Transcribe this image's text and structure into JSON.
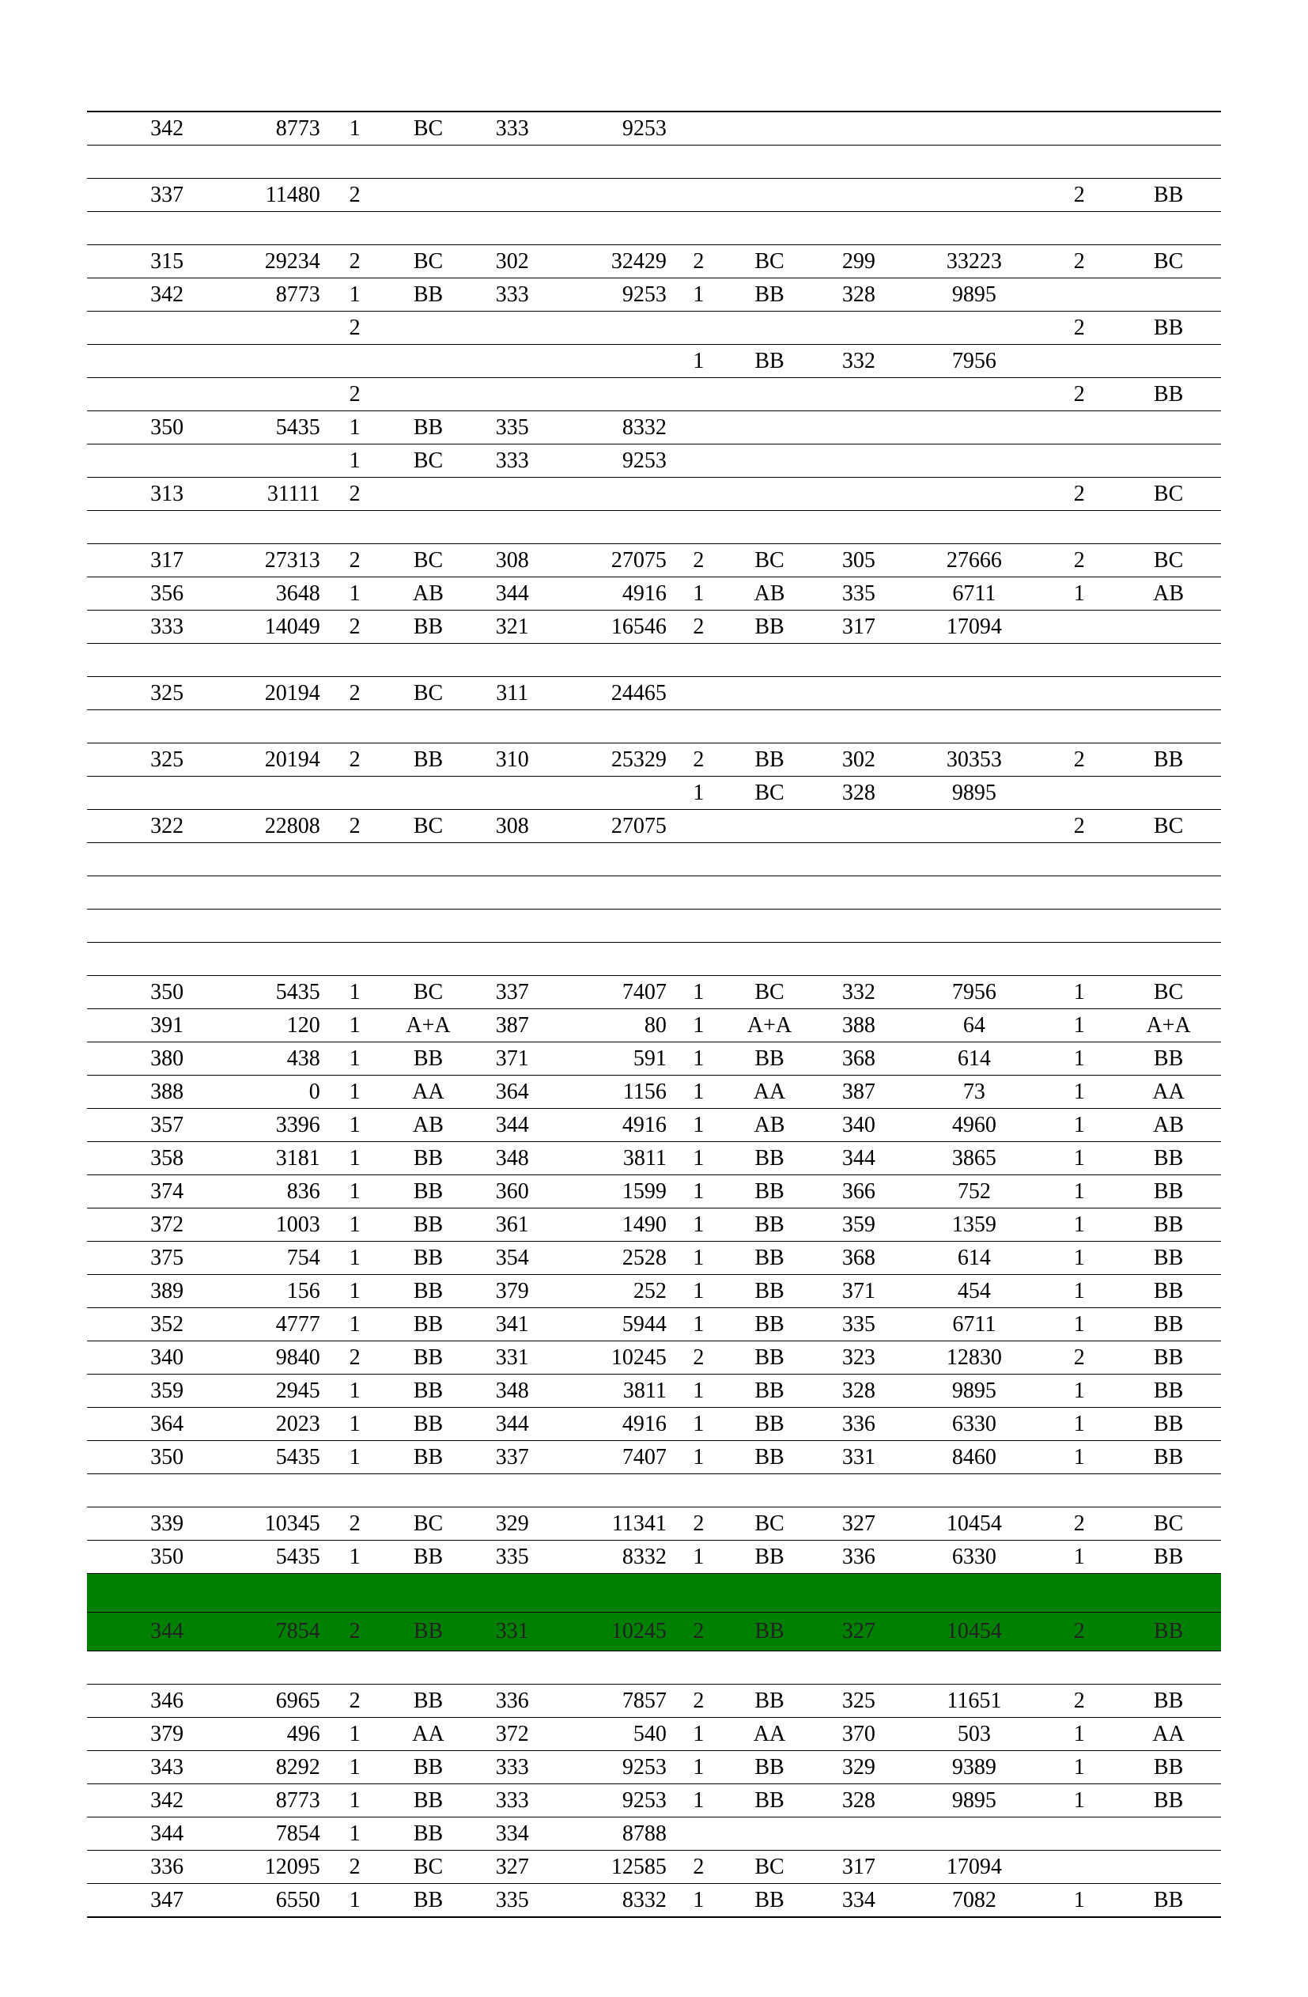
{
  "columns": [
    {
      "class": "c0"
    },
    {
      "class": "c1"
    },
    {
      "class": "c2"
    },
    {
      "class": "c3"
    },
    {
      "class": "c4"
    },
    {
      "class": "c5"
    },
    {
      "class": "c6"
    },
    {
      "class": "c7"
    },
    {
      "class": "c8"
    },
    {
      "class": "c9"
    },
    {
      "class": "c10"
    },
    {
      "class": "c11"
    }
  ],
  "rows": [
    {
      "cells": [
        "342",
        "8773",
        "1",
        "BC",
        "333",
        "9253",
        "",
        "",
        "",
        "",
        "",
        ""
      ]
    },
    {
      "cells": [
        "",
        "",
        "",
        "",
        "",
        "",
        "",
        "",
        "",
        "",
        "",
        ""
      ]
    },
    {
      "cells": [
        "337",
        "11480",
        "2",
        "",
        "",
        "",
        "",
        "",
        "",
        "",
        "2",
        "BB"
      ]
    },
    {
      "cells": [
        "",
        "",
        "",
        "",
        "",
        "",
        "",
        "",
        "",
        "",
        "",
        ""
      ]
    },
    {
      "cells": [
        "315",
        "29234",
        "2",
        "BC",
        "302",
        "32429",
        "2",
        "BC",
        "299",
        "33223",
        "2",
        "BC"
      ]
    },
    {
      "cells": [
        "342",
        "8773",
        "1",
        "BB",
        "333",
        "9253",
        "1",
        "BB",
        "328",
        "9895",
        "",
        ""
      ]
    },
    {
      "cells": [
        "",
        "",
        "2",
        "",
        "",
        "",
        "",
        "",
        "",
        "",
        "2",
        "BB"
      ]
    },
    {
      "cells": [
        "",
        "",
        "",
        "",
        "",
        "",
        "1",
        "BB",
        "332",
        "7956",
        "",
        ""
      ]
    },
    {
      "cells": [
        "",
        "",
        "2",
        "",
        "",
        "",
        "",
        "",
        "",
        "",
        "2",
        "BB"
      ]
    },
    {
      "cells": [
        "350",
        "5435",
        "1",
        "BB",
        "335",
        "8332",
        "",
        "",
        "",
        "",
        "",
        ""
      ]
    },
    {
      "cells": [
        "",
        "",
        "1",
        "BC",
        "333",
        "9253",
        "",
        "",
        "",
        "",
        "",
        ""
      ]
    },
    {
      "cells": [
        "313",
        "31111",
        "2",
        "",
        "",
        "",
        "",
        "",
        "",
        "",
        "2",
        "BC"
      ]
    },
    {
      "cells": [
        "",
        "",
        "",
        "",
        "",
        "",
        "",
        "",
        "",
        "",
        "",
        ""
      ]
    },
    {
      "cells": [
        "317",
        "27313",
        "2",
        "BC",
        "308",
        "27075",
        "2",
        "BC",
        "305",
        "27666",
        "2",
        "BC"
      ]
    },
    {
      "cells": [
        "356",
        "3648",
        "1",
        "AB",
        "344",
        "4916",
        "1",
        "AB",
        "335",
        "6711",
        "1",
        "AB"
      ]
    },
    {
      "cells": [
        "333",
        "14049",
        "2",
        "BB",
        "321",
        "16546",
        "2",
        "BB",
        "317",
        "17094",
        "",
        ""
      ]
    },
    {
      "cells": [
        "",
        "",
        "",
        "",
        "",
        "",
        "",
        "",
        "",
        "",
        "",
        ""
      ]
    },
    {
      "cells": [
        "325",
        "20194",
        "2",
        "BC",
        "311",
        "24465",
        "",
        "",
        "",
        "",
        "",
        ""
      ]
    },
    {
      "cells": [
        "",
        "",
        "",
        "",
        "",
        "",
        "",
        "",
        "",
        "",
        "",
        ""
      ]
    },
    {
      "cells": [
        "325",
        "20194",
        "2",
        "BB",
        "310",
        "25329",
        "2",
        "BB",
        "302",
        "30353",
        "2",
        "BB"
      ]
    },
    {
      "cells": [
        "",
        "",
        "",
        "",
        "",
        "",
        "1",
        "BC",
        "328",
        "9895",
        "",
        ""
      ]
    },
    {
      "cells": [
        "322",
        "22808",
        "2",
        "BC",
        "308",
        "27075",
        "",
        "",
        "",
        "",
        "2",
        "BC"
      ]
    },
    {
      "cells": [
        "",
        "",
        "",
        "",
        "",
        "",
        "",
        "",
        "",
        "",
        "",
        ""
      ]
    },
    {
      "cells": [
        "",
        "",
        "",
        "",
        "",
        "",
        "",
        "",
        "",
        "",
        "",
        ""
      ]
    },
    {
      "cells": [
        "",
        "",
        "",
        "",
        "",
        "",
        "",
        "",
        "",
        "",
        "",
        ""
      ]
    },
    {
      "cells": [
        "",
        "",
        "",
        "",
        "",
        "",
        "",
        "",
        "",
        "",
        "",
        ""
      ]
    },
    {
      "cells": [
        "350",
        "5435",
        "1",
        "BC",
        "337",
        "7407",
        "1",
        "BC",
        "332",
        "7956",
        "1",
        "BC"
      ]
    },
    {
      "cells": [
        "391",
        "120",
        "1",
        "A+A",
        "387",
        "80",
        "1",
        "A+A",
        "388",
        "64",
        "1",
        "A+A"
      ]
    },
    {
      "cells": [
        "380",
        "438",
        "1",
        "BB",
        "371",
        "591",
        "1",
        "BB",
        "368",
        "614",
        "1",
        "BB"
      ]
    },
    {
      "cells": [
        "388",
        "0",
        "1",
        "AA",
        "364",
        "1156",
        "1",
        "AA",
        "387",
        "73",
        "1",
        "AA"
      ]
    },
    {
      "cells": [
        "357",
        "3396",
        "1",
        "AB",
        "344",
        "4916",
        "1",
        "AB",
        "340",
        "4960",
        "1",
        "AB"
      ]
    },
    {
      "cells": [
        "358",
        "3181",
        "1",
        "BB",
        "348",
        "3811",
        "1",
        "BB",
        "344",
        "3865",
        "1",
        "BB"
      ]
    },
    {
      "cells": [
        "374",
        "836",
        "1",
        "BB",
        "360",
        "1599",
        "1",
        "BB",
        "366",
        "752",
        "1",
        "BB"
      ]
    },
    {
      "cells": [
        "372",
        "1003",
        "1",
        "BB",
        "361",
        "1490",
        "1",
        "BB",
        "359",
        "1359",
        "1",
        "BB"
      ]
    },
    {
      "cells": [
        "375",
        "754",
        "1",
        "BB",
        "354",
        "2528",
        "1",
        "BB",
        "368",
        "614",
        "1",
        "BB"
      ]
    },
    {
      "cells": [
        "389",
        "156",
        "1",
        "BB",
        "379",
        "252",
        "1",
        "BB",
        "371",
        "454",
        "1",
        "BB"
      ]
    },
    {
      "cells": [
        "352",
        "4777",
        "1",
        "BB",
        "341",
        "5944",
        "1",
        "BB",
        "335",
        "6711",
        "1",
        "BB"
      ]
    },
    {
      "cells": [
        "340",
        "9840",
        "2",
        "BB",
        "331",
        "10245",
        "2",
        "BB",
        "323",
        "12830",
        "2",
        "BB"
      ]
    },
    {
      "cells": [
        "359",
        "2945",
        "1",
        "BB",
        "348",
        "3811",
        "1",
        "BB",
        "328",
        "9895",
        "1",
        "BB"
      ]
    },
    {
      "cells": [
        "364",
        "2023",
        "1",
        "BB",
        "344",
        "4916",
        "1",
        "BB",
        "336",
        "6330",
        "1",
        "BB"
      ]
    },
    {
      "cells": [
        "350",
        "5435",
        "1",
        "BB",
        "337",
        "7407",
        "1",
        "BB",
        "331",
        "8460",
        "1",
        "BB"
      ]
    },
    {
      "cells": [
        "",
        "",
        "",
        "",
        "",
        "",
        "",
        "",
        "",
        "",
        "",
        ""
      ]
    },
    {
      "cells": [
        "339",
        "10345",
        "2",
        "BC",
        "329",
        "11341",
        "2",
        "BC",
        "327",
        "10454",
        "2",
        "BC"
      ]
    },
    {
      "cells": [
        "350",
        "5435",
        "1",
        "BB",
        "335",
        "8332",
        "1",
        "BB",
        "336",
        "6330",
        "1",
        "BB"
      ]
    },
    {
      "cells": [
        "",
        "",
        "",
        "",
        "",
        "",
        "",
        "",
        "",
        "",
        "",
        ""
      ],
      "highlight": true
    },
    {
      "cells": [
        "344",
        "7854",
        "2",
        "BB",
        "331",
        "10245",
        "2",
        "BB",
        "327",
        "10454",
        "2",
        "BB"
      ],
      "highlight": true
    },
    {
      "cells": [
        "",
        "",
        "",
        "",
        "",
        "",
        "",
        "",
        "",
        "",
        "",
        ""
      ]
    },
    {
      "cells": [
        "346",
        "6965",
        "2",
        "BB",
        "336",
        "7857",
        "2",
        "BB",
        "325",
        "11651",
        "2",
        "BB"
      ]
    },
    {
      "cells": [
        "379",
        "496",
        "1",
        "AA",
        "372",
        "540",
        "1",
        "AA",
        "370",
        "503",
        "1",
        "AA"
      ]
    },
    {
      "cells": [
        "343",
        "8292",
        "1",
        "BB",
        "333",
        "9253",
        "1",
        "BB",
        "329",
        "9389",
        "1",
        "BB"
      ]
    },
    {
      "cells": [
        "342",
        "8773",
        "1",
        "BB",
        "333",
        "9253",
        "1",
        "BB",
        "328",
        "9895",
        "1",
        "BB"
      ]
    },
    {
      "cells": [
        "344",
        "7854",
        "1",
        "BB",
        "334",
        "8788",
        "",
        "",
        "",
        "",
        "",
        ""
      ]
    },
    {
      "cells": [
        "336",
        "12095",
        "2",
        "BC",
        "327",
        "12585",
        "2",
        "BC",
        "317",
        "17094",
        "",
        ""
      ]
    },
    {
      "cells": [
        "347",
        "6550",
        "1",
        "BB",
        "335",
        "8332",
        "1",
        "BB",
        "334",
        "7082",
        "1",
        "BB"
      ]
    }
  ]
}
